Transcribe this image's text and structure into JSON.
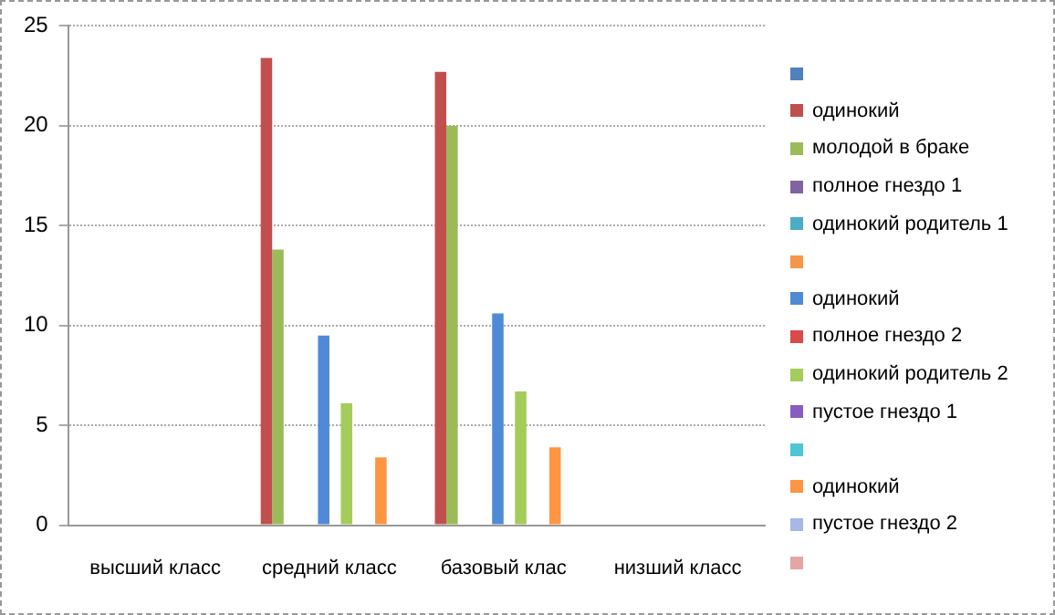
{
  "chart_data": {
    "type": "bar",
    "categories": [
      "высший класс",
      "средний класс",
      "базовый клас",
      "низший класс"
    ],
    "series": [
      {
        "color": "#4f81bd",
        "values": [
          null,
          null,
          null,
          null
        ]
      },
      {
        "name": "одинокий",
        "color": "#c0504d",
        "values": [
          null,
          23.4,
          22.7,
          null
        ]
      },
      {
        "name": "молодой в браке",
        "color": "#9bbb59",
        "values": [
          null,
          13.8,
          20,
          null
        ]
      },
      {
        "name": "полное гнездо 1",
        "color": "#8064a2",
        "values": [
          null,
          null,
          null,
          null
        ]
      },
      {
        "name": "одинокий родитель 1",
        "color": "#4bacc6",
        "values": [
          null,
          null,
          null,
          null
        ]
      },
      {
        "color": "#f79646",
        "values": [
          null,
          null,
          null,
          null
        ]
      },
      {
        "name": "одинокий",
        "color": "#4f8ad6",
        "values": [
          null,
          9.5,
          10.6,
          null
        ]
      },
      {
        "name": "полное гнездо 2",
        "color": "#d94a48",
        "values": [
          null,
          null,
          null,
          null
        ]
      },
      {
        "name": "одинокий родитель 2",
        "color": "#a3cc5a",
        "values": [
          null,
          6.1,
          6.7,
          null
        ]
      },
      {
        "name": "пустое гнездо 1",
        "color": "#8a5cc2",
        "values": [
          null,
          null,
          null,
          null
        ]
      },
      {
        "color": "#4fc5d8",
        "values": [
          null,
          null,
          null,
          null
        ]
      },
      {
        "name": "одинокий",
        "color": "#ff9443",
        "values": [
          null,
          3.4,
          3.9,
          null
        ]
      },
      {
        "name": "пустое гнездо 2",
        "color": "#a5b8e6",
        "values": [
          null,
          null,
          null,
          null
        ]
      },
      {
        "color": "#e6a5a5",
        "values": [
          null,
          null,
          null,
          null
        ]
      }
    ],
    "ylim": [
      0,
      25
    ],
    "yticks": [
      0,
      5,
      10,
      15,
      20,
      25
    ],
    "grid": "y",
    "legend": "right"
  }
}
